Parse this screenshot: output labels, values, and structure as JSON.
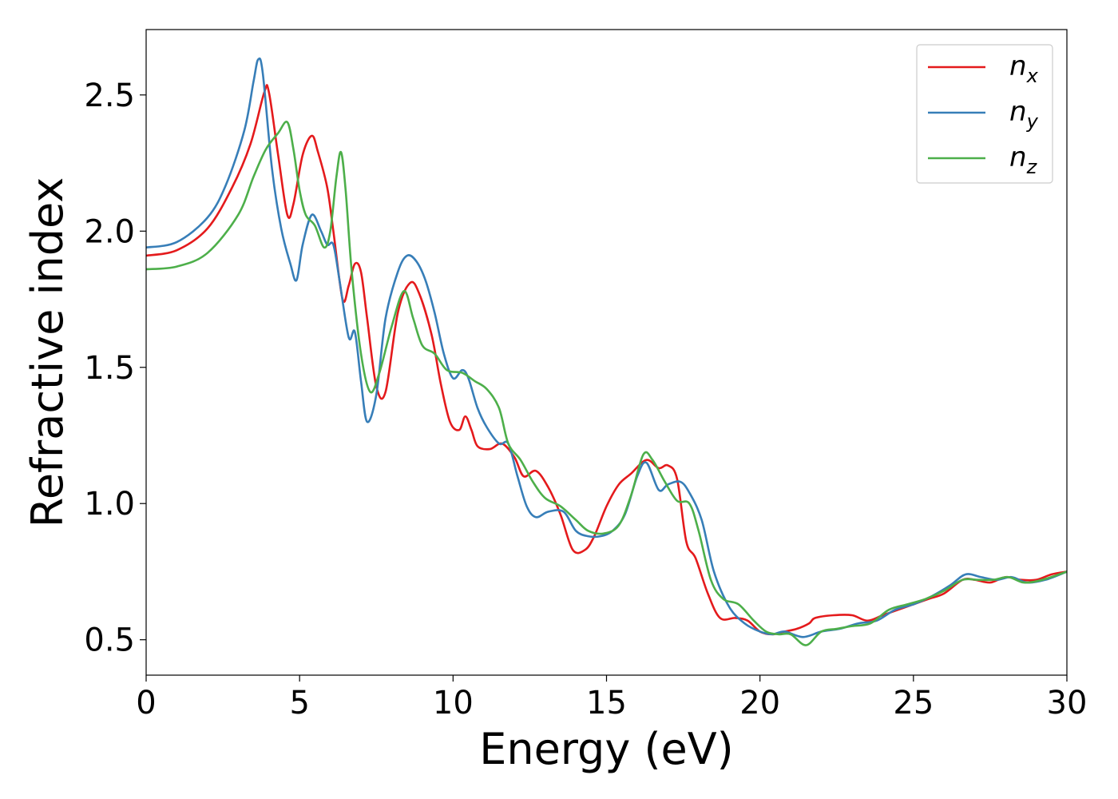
{
  "chart_data": {
    "type": "line",
    "title": "",
    "xlabel": "Energy (eV)",
    "ylabel": "Refractive index",
    "xlim": [
      0,
      30
    ],
    "ylim": [
      0.37,
      2.74
    ],
    "xticks": [
      0,
      5,
      10,
      15,
      20,
      25,
      30
    ],
    "yticks": [
      0.5,
      1.0,
      1.5,
      2.0,
      2.5
    ],
    "xtick_labels": [
      "0",
      "5",
      "10",
      "15",
      "20",
      "25",
      "30"
    ],
    "ytick_labels": [
      "0.5",
      "1.0",
      "1.5",
      "2.0",
      "2.5"
    ],
    "grid": false,
    "legend_position": "top-right",
    "series": [
      {
        "name": "n",
        "subscript": "x",
        "color": "#e41a1c",
        "points": [
          [
            0,
            1.91
          ],
          [
            1,
            1.93
          ],
          [
            2,
            2.01
          ],
          [
            2.8,
            2.16
          ],
          [
            3.4,
            2.32
          ],
          [
            3.85,
            2.51
          ],
          [
            4.0,
            2.51
          ],
          [
            4.3,
            2.28
          ],
          [
            4.6,
            2.06
          ],
          [
            4.8,
            2.1
          ],
          [
            5.1,
            2.28
          ],
          [
            5.4,
            2.35
          ],
          [
            5.6,
            2.29
          ],
          [
            5.9,
            2.16
          ],
          [
            6.1,
            2.0
          ],
          [
            6.4,
            1.75
          ],
          [
            6.6,
            1.8
          ],
          [
            6.8,
            1.88
          ],
          [
            7.0,
            1.85
          ],
          [
            7.2,
            1.68
          ],
          [
            7.5,
            1.43
          ],
          [
            7.8,
            1.41
          ],
          [
            8.2,
            1.7
          ],
          [
            8.6,
            1.81
          ],
          [
            8.9,
            1.77
          ],
          [
            9.3,
            1.62
          ],
          [
            9.6,
            1.44
          ],
          [
            9.9,
            1.3
          ],
          [
            10.2,
            1.27
          ],
          [
            10.4,
            1.32
          ],
          [
            10.6,
            1.27
          ],
          [
            10.8,
            1.21
          ],
          [
            11.2,
            1.2
          ],
          [
            11.6,
            1.22
          ],
          [
            12.0,
            1.17
          ],
          [
            12.3,
            1.1
          ],
          [
            12.7,
            1.12
          ],
          [
            13.1,
            1.06
          ],
          [
            13.5,
            0.96
          ],
          [
            13.9,
            0.83
          ],
          [
            14.3,
            0.83
          ],
          [
            14.6,
            0.88
          ],
          [
            15.0,
            0.99
          ],
          [
            15.4,
            1.07
          ],
          [
            15.8,
            1.11
          ],
          [
            16.3,
            1.16
          ],
          [
            16.7,
            1.13
          ],
          [
            17.0,
            1.14
          ],
          [
            17.3,
            1.09
          ],
          [
            17.6,
            0.86
          ],
          [
            17.9,
            0.8
          ],
          [
            18.3,
            0.67
          ],
          [
            18.7,
            0.58
          ],
          [
            19.2,
            0.58
          ],
          [
            19.6,
            0.57
          ],
          [
            20.0,
            0.53
          ],
          [
            20.4,
            0.52
          ],
          [
            20.8,
            0.53
          ],
          [
            21.2,
            0.54
          ],
          [
            21.6,
            0.56
          ],
          [
            21.8,
            0.58
          ],
          [
            22.4,
            0.59
          ],
          [
            23.0,
            0.59
          ],
          [
            23.5,
            0.57
          ],
          [
            24.0,
            0.59
          ],
          [
            24.5,
            0.61
          ],
          [
            25.0,
            0.63
          ],
          [
            25.5,
            0.65
          ],
          [
            26.0,
            0.67
          ],
          [
            26.6,
            0.72
          ],
          [
            27.0,
            0.72
          ],
          [
            27.5,
            0.71
          ],
          [
            28.0,
            0.73
          ],
          [
            28.5,
            0.72
          ],
          [
            29.0,
            0.72
          ],
          [
            29.5,
            0.74
          ],
          [
            30.0,
            0.75
          ]
        ]
      },
      {
        "name": "n",
        "subscript": "y",
        "color": "#377eb8",
        "points": [
          [
            0,
            1.94
          ],
          [
            1,
            1.96
          ],
          [
            2,
            2.05
          ],
          [
            2.6,
            2.17
          ],
          [
            3.2,
            2.37
          ],
          [
            3.5,
            2.55
          ],
          [
            3.65,
            2.63
          ],
          [
            3.8,
            2.58
          ],
          [
            4.1,
            2.23
          ],
          [
            4.4,
            2.01
          ],
          [
            4.7,
            1.88
          ],
          [
            4.9,
            1.82
          ],
          [
            5.1,
            1.95
          ],
          [
            5.4,
            2.06
          ],
          [
            5.7,
            2.0
          ],
          [
            5.9,
            1.95
          ],
          [
            6.1,
            1.95
          ],
          [
            6.3,
            1.82
          ],
          [
            6.6,
            1.61
          ],
          [
            6.8,
            1.63
          ],
          [
            7.0,
            1.45
          ],
          [
            7.2,
            1.3
          ],
          [
            7.5,
            1.4
          ],
          [
            7.8,
            1.68
          ],
          [
            8.2,
            1.85
          ],
          [
            8.5,
            1.91
          ],
          [
            8.8,
            1.89
          ],
          [
            9.1,
            1.82
          ],
          [
            9.4,
            1.7
          ],
          [
            9.7,
            1.55
          ],
          [
            10.0,
            1.46
          ],
          [
            10.3,
            1.49
          ],
          [
            10.5,
            1.46
          ],
          [
            10.8,
            1.35
          ],
          [
            11.1,
            1.28
          ],
          [
            11.5,
            1.22
          ],
          [
            11.8,
            1.22
          ],
          [
            12.1,
            1.1
          ],
          [
            12.4,
            0.99
          ],
          [
            12.7,
            0.95
          ],
          [
            13.1,
            0.97
          ],
          [
            13.6,
            0.97
          ],
          [
            14.0,
            0.9
          ],
          [
            14.4,
            0.88
          ],
          [
            14.8,
            0.88
          ],
          [
            15.2,
            0.9
          ],
          [
            15.6,
            0.96
          ],
          [
            16.0,
            1.1
          ],
          [
            16.3,
            1.15
          ],
          [
            16.7,
            1.05
          ],
          [
            17.0,
            1.07
          ],
          [
            17.4,
            1.08
          ],
          [
            17.7,
            1.04
          ],
          [
            18.1,
            0.94
          ],
          [
            18.5,
            0.75
          ],
          [
            19.0,
            0.62
          ],
          [
            19.5,
            0.56
          ],
          [
            20.0,
            0.53
          ],
          [
            20.4,
            0.52
          ],
          [
            20.8,
            0.53
          ],
          [
            21.4,
            0.51
          ],
          [
            22.0,
            0.53
          ],
          [
            22.6,
            0.54
          ],
          [
            23.2,
            0.56
          ],
          [
            23.8,
            0.57
          ],
          [
            24.4,
            0.61
          ],
          [
            25.0,
            0.63
          ],
          [
            25.6,
            0.66
          ],
          [
            26.2,
            0.7
          ],
          [
            26.7,
            0.74
          ],
          [
            27.2,
            0.73
          ],
          [
            27.7,
            0.72
          ],
          [
            28.2,
            0.73
          ],
          [
            28.7,
            0.71
          ],
          [
            29.3,
            0.72
          ],
          [
            30.0,
            0.75
          ]
        ]
      },
      {
        "name": "n",
        "subscript": "z",
        "color": "#4daf4a",
        "points": [
          [
            0,
            1.86
          ],
          [
            1,
            1.87
          ],
          [
            2,
            1.92
          ],
          [
            3,
            2.06
          ],
          [
            3.5,
            2.2
          ],
          [
            3.9,
            2.3
          ],
          [
            4.3,
            2.36
          ],
          [
            4.6,
            2.4
          ],
          [
            4.8,
            2.3
          ],
          [
            5.0,
            2.15
          ],
          [
            5.2,
            2.06
          ],
          [
            5.5,
            2.02
          ],
          [
            5.8,
            1.94
          ],
          [
            6.0,
            2.0
          ],
          [
            6.2,
            2.2
          ],
          [
            6.35,
            2.29
          ],
          [
            6.5,
            2.15
          ],
          [
            6.7,
            1.85
          ],
          [
            7.0,
            1.55
          ],
          [
            7.3,
            1.41
          ],
          [
            7.6,
            1.48
          ],
          [
            8.0,
            1.65
          ],
          [
            8.4,
            1.78
          ],
          [
            8.7,
            1.68
          ],
          [
            9.0,
            1.58
          ],
          [
            9.4,
            1.55
          ],
          [
            9.8,
            1.49
          ],
          [
            10.3,
            1.48
          ],
          [
            10.7,
            1.45
          ],
          [
            11.1,
            1.42
          ],
          [
            11.5,
            1.35
          ],
          [
            11.8,
            1.22
          ],
          [
            12.2,
            1.16
          ],
          [
            12.6,
            1.08
          ],
          [
            13.0,
            1.02
          ],
          [
            13.5,
            0.99
          ],
          [
            14.0,
            0.94
          ],
          [
            14.4,
            0.9
          ],
          [
            14.9,
            0.89
          ],
          [
            15.4,
            0.92
          ],
          [
            15.8,
            1.03
          ],
          [
            16.2,
            1.18
          ],
          [
            16.5,
            1.16
          ],
          [
            16.9,
            1.08
          ],
          [
            17.3,
            1.01
          ],
          [
            17.7,
            1.0
          ],
          [
            18.0,
            0.9
          ],
          [
            18.4,
            0.72
          ],
          [
            18.8,
            0.65
          ],
          [
            19.3,
            0.63
          ],
          [
            19.8,
            0.57
          ],
          [
            20.2,
            0.53
          ],
          [
            20.6,
            0.52
          ],
          [
            21.0,
            0.52
          ],
          [
            21.5,
            0.48
          ],
          [
            22.0,
            0.53
          ],
          [
            22.5,
            0.54
          ],
          [
            23.0,
            0.55
          ],
          [
            23.6,
            0.56
          ],
          [
            24.2,
            0.61
          ],
          [
            24.8,
            0.63
          ],
          [
            25.4,
            0.65
          ],
          [
            26.0,
            0.68
          ],
          [
            26.6,
            0.72
          ],
          [
            27.1,
            0.72
          ],
          [
            27.6,
            0.72
          ],
          [
            28.1,
            0.73
          ],
          [
            28.6,
            0.71
          ],
          [
            29.2,
            0.72
          ],
          [
            30.0,
            0.75
          ]
        ]
      }
    ]
  }
}
